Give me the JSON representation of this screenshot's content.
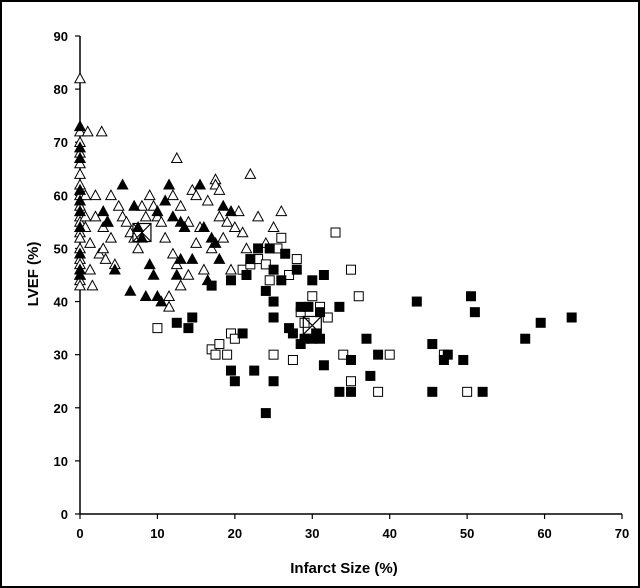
{
  "chart_data": {
    "type": "scatter",
    "xlabel": "Infarct Size (%)",
    "ylabel": "LVEF (%)",
    "xlim": [
      0,
      70
    ],
    "ylim": [
      0,
      90
    ],
    "xticks": [
      0,
      10,
      20,
      30,
      40,
      50,
      60,
      70
    ],
    "yticks": [
      0,
      10,
      20,
      30,
      40,
      50,
      60,
      70,
      80,
      90
    ],
    "grid": false,
    "legend": "none",
    "series": [
      {
        "marker": "open-triangle",
        "color": "#000000",
        "points": [
          [
            0,
            82
          ],
          [
            0,
            72
          ],
          [
            0,
            70
          ],
          [
            0,
            68
          ],
          [
            0,
            66
          ],
          [
            0,
            64
          ],
          [
            0,
            62
          ],
          [
            0,
            60
          ],
          [
            0,
            58
          ],
          [
            0,
            56
          ],
          [
            0,
            55
          ],
          [
            0,
            53
          ],
          [
            0,
            52
          ],
          [
            0,
            50
          ],
          [
            0,
            48
          ],
          [
            0,
            47
          ],
          [
            0,
            45
          ],
          [
            0,
            44
          ],
          [
            0,
            43
          ],
          [
            0.7,
            60
          ],
          [
            0.7,
            56
          ],
          [
            0.7,
            54
          ],
          [
            1,
            72
          ],
          [
            1.3,
            51
          ],
          [
            1.3,
            46
          ],
          [
            1.6,
            43
          ],
          [
            2,
            60
          ],
          [
            2,
            56
          ],
          [
            2.5,
            49
          ],
          [
            2.8,
            72
          ],
          [
            3,
            54
          ],
          [
            3,
            50
          ],
          [
            3.3,
            48
          ],
          [
            3.6,
            55
          ],
          [
            4,
            60
          ],
          [
            4,
            52
          ],
          [
            4.5,
            47
          ],
          [
            5,
            58
          ],
          [
            5.5,
            56
          ],
          [
            6,
            55
          ],
          [
            6.5,
            53
          ],
          [
            7,
            52
          ],
          [
            7.5,
            50
          ],
          [
            8,
            58
          ],
          [
            8.5,
            56
          ],
          [
            9,
            60
          ],
          [
            9.5,
            58
          ],
          [
            10,
            56
          ],
          [
            10.5,
            55
          ],
          [
            11,
            52
          ],
          [
            11.5,
            41
          ],
          [
            11.5,
            39
          ],
          [
            12,
            60
          ],
          [
            12,
            49
          ],
          [
            12.5,
            47
          ],
          [
            12.5,
            67
          ],
          [
            13,
            58
          ],
          [
            13,
            43
          ],
          [
            14,
            55
          ],
          [
            14,
            45
          ],
          [
            14.5,
            61
          ],
          [
            15,
            60
          ],
          [
            15,
            51
          ],
          [
            15.5,
            54
          ],
          [
            16,
            46
          ],
          [
            16.5,
            59
          ],
          [
            17,
            50
          ],
          [
            17.5,
            63
          ],
          [
            17.5,
            62
          ],
          [
            18,
            61
          ],
          [
            18,
            56
          ],
          [
            18.5,
            52
          ],
          [
            19,
            55
          ],
          [
            19.5,
            46
          ],
          [
            20,
            54
          ],
          [
            20.5,
            57
          ],
          [
            21,
            53
          ],
          [
            21.5,
            50
          ],
          [
            22,
            64
          ],
          [
            23,
            56
          ],
          [
            24,
            51
          ],
          [
            25,
            54
          ],
          [
            26,
            57
          ]
        ]
      },
      {
        "marker": "filled-triangle",
        "color": "#000000",
        "points": [
          [
            0,
            73
          ],
          [
            0,
            69
          ],
          [
            0,
            67
          ],
          [
            0,
            61
          ],
          [
            0,
            59
          ],
          [
            0,
            57
          ],
          [
            0,
            54
          ],
          [
            0,
            49
          ],
          [
            0,
            46
          ],
          [
            0,
            45
          ],
          [
            3,
            57
          ],
          [
            3.5,
            55
          ],
          [
            4.5,
            46
          ],
          [
            5.5,
            62
          ],
          [
            6.5,
            42
          ],
          [
            7,
            58
          ],
          [
            7.5,
            54
          ],
          [
            8,
            52
          ],
          [
            8.5,
            41
          ],
          [
            9,
            47
          ],
          [
            9.5,
            45
          ],
          [
            10,
            57
          ],
          [
            10,
            41
          ],
          [
            10.5,
            40
          ],
          [
            11,
            59
          ],
          [
            11.5,
            62
          ],
          [
            12,
            56
          ],
          [
            12.5,
            45
          ],
          [
            13,
            48
          ],
          [
            13,
            55
          ],
          [
            13.5,
            54
          ],
          [
            14.5,
            48
          ],
          [
            15.5,
            62
          ],
          [
            16,
            54
          ],
          [
            16.5,
            44
          ],
          [
            17,
            52
          ],
          [
            17.5,
            51
          ],
          [
            18,
            48
          ],
          [
            18.5,
            58
          ],
          [
            19.5,
            57
          ]
        ]
      },
      {
        "marker": "open-square",
        "color": "#000000",
        "points": [
          [
            10,
            35
          ],
          [
            17,
            31
          ],
          [
            17.5,
            30
          ],
          [
            18,
            32
          ],
          [
            19,
            30
          ],
          [
            19.5,
            34
          ],
          [
            20,
            33
          ],
          [
            21,
            46
          ],
          [
            22,
            47
          ],
          [
            23,
            48
          ],
          [
            24,
            47
          ],
          [
            24.5,
            44
          ],
          [
            25,
            30
          ],
          [
            25.5,
            50
          ],
          [
            26,
            52
          ],
          [
            27,
            45
          ],
          [
            27.5,
            29
          ],
          [
            28,
            48
          ],
          [
            28.5,
            38
          ],
          [
            29,
            36
          ],
          [
            30,
            41
          ],
          [
            31,
            39
          ],
          [
            32,
            37
          ],
          [
            33,
            53
          ],
          [
            34,
            30
          ],
          [
            35,
            46
          ],
          [
            35,
            25
          ],
          [
            36,
            41
          ],
          [
            38.5,
            23
          ],
          [
            40,
            30
          ],
          [
            47,
            30
          ],
          [
            50,
            23
          ]
        ]
      },
      {
        "marker": "filled-square",
        "color": "#000000",
        "points": [
          [
            12.5,
            36
          ],
          [
            14,
            35
          ],
          [
            14.5,
            37
          ],
          [
            17,
            43
          ],
          [
            19.5,
            44
          ],
          [
            19.5,
            27
          ],
          [
            20,
            25
          ],
          [
            21,
            34
          ],
          [
            21.5,
            45
          ],
          [
            22,
            48
          ],
          [
            22.5,
            27
          ],
          [
            23,
            50
          ],
          [
            24,
            42
          ],
          [
            24,
            19
          ],
          [
            24.5,
            50
          ],
          [
            25,
            46
          ],
          [
            25,
            40
          ],
          [
            25,
            37
          ],
          [
            25,
            25
          ],
          [
            26,
            44
          ],
          [
            26.5,
            49
          ],
          [
            27,
            35
          ],
          [
            27.5,
            34
          ],
          [
            28,
            46
          ],
          [
            28.5,
            39
          ],
          [
            28.5,
            32
          ],
          [
            29,
            33
          ],
          [
            29.5,
            39
          ],
          [
            30,
            44
          ],
          [
            30,
            33
          ],
          [
            30.5,
            34
          ],
          [
            31,
            38
          ],
          [
            31,
            33
          ],
          [
            31.5,
            45
          ],
          [
            31.5,
            28
          ],
          [
            33.5,
            39
          ],
          [
            33.5,
            23
          ],
          [
            35,
            29
          ],
          [
            35,
            23
          ],
          [
            37,
            33
          ],
          [
            37.5,
            26
          ],
          [
            38.5,
            30
          ],
          [
            43.5,
            40
          ],
          [
            45.5,
            32
          ],
          [
            45.5,
            23
          ],
          [
            47,
            29
          ],
          [
            47.5,
            30
          ],
          [
            49.5,
            29
          ],
          [
            50.5,
            41
          ],
          [
            51,
            38
          ],
          [
            52,
            23
          ],
          [
            57.5,
            33
          ],
          [
            59.5,
            36
          ],
          [
            63.5,
            37
          ]
        ]
      },
      {
        "marker": "crossed-open-square",
        "color": "#000000",
        "points": [
          [
            8,
            53
          ],
          [
            30,
            35.5
          ]
        ]
      }
    ]
  }
}
